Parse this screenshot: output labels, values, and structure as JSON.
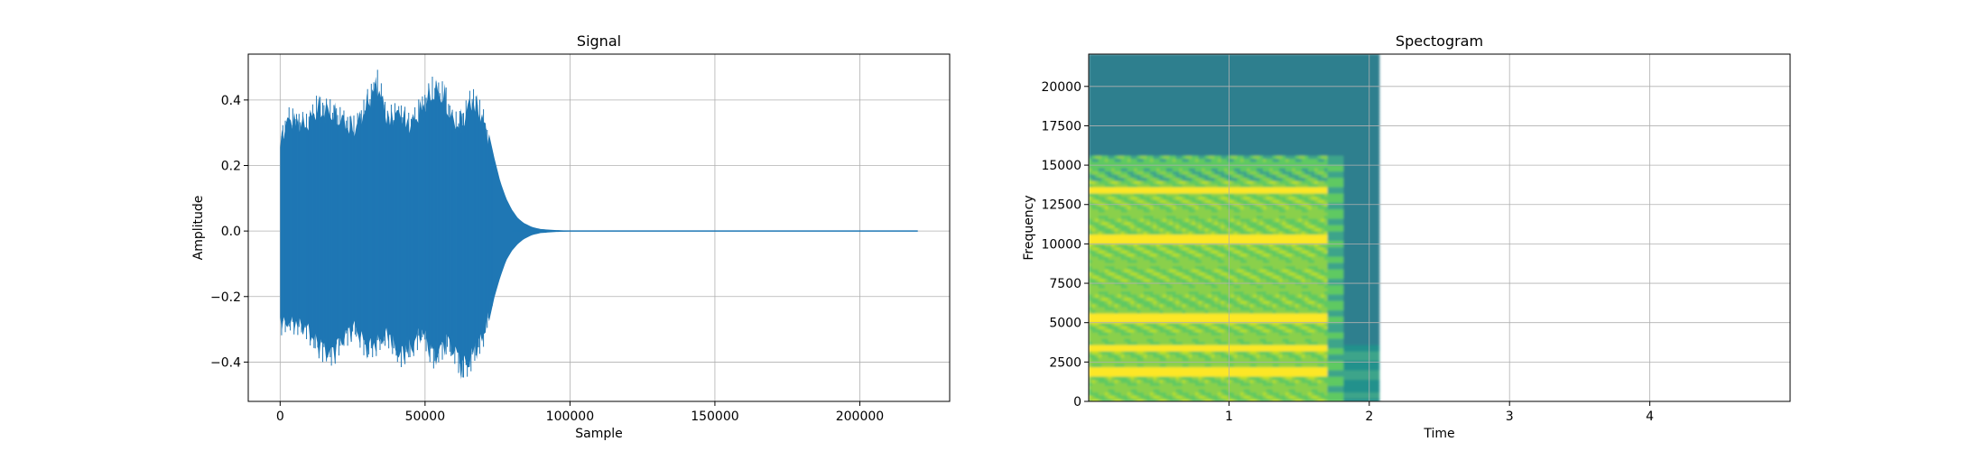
{
  "chart_data": [
    {
      "type": "line",
      "title": "Signal",
      "xlabel": "Sample",
      "ylabel": "Amplitude",
      "xlim": [
        -11000,
        231000
      ],
      "ylim": [
        -0.52,
        0.54
      ],
      "xticks": [
        0,
        50000,
        100000,
        150000,
        200000
      ],
      "xtick_labels": [
        "0",
        "50000",
        "100000",
        "150000",
        "200000"
      ],
      "yticks": [
        -0.4,
        -0.2,
        0.0,
        0.2,
        0.4
      ],
      "ytick_labels": [
        "−0.4",
        "−0.2",
        "0.0",
        "0.2",
        "0.4"
      ],
      "grid": true,
      "series": [
        {
          "color": "#1f77b4",
          "envelope": {
            "x": [
              0,
              3000,
              9000,
              13000,
              18000,
              22000,
              26000,
              30000,
              33500,
              37000,
              41000,
              45000,
              49000,
              53000,
              57000,
              60000,
              63000,
              66500,
              70000,
              72000,
              74000,
              76000,
              78000,
              80000,
              82000,
              84000,
              87000,
              90000,
              95000,
              100000,
              220000
            ],
            "upper": [
              0.31,
              0.38,
              0.36,
              0.42,
              0.4,
              0.37,
              0.35,
              0.43,
              0.5,
              0.38,
              0.4,
              0.36,
              0.42,
              0.48,
              0.45,
              0.36,
              0.38,
              0.45,
              0.38,
              0.3,
              0.22,
              0.15,
              0.1,
              0.065,
              0.04,
              0.025,
              0.012,
              0.006,
              0.003,
              0.001,
              0.0
            ],
            "lower": [
              -0.32,
              -0.31,
              -0.33,
              -0.39,
              -0.42,
              -0.36,
              -0.33,
              -0.4,
              -0.38,
              -0.35,
              -0.42,
              -0.4,
              -0.34,
              -0.43,
              -0.38,
              -0.4,
              -0.47,
              -0.42,
              -0.36,
              -0.28,
              -0.2,
              -0.14,
              -0.09,
              -0.06,
              -0.04,
              -0.025,
              -0.012,
              -0.006,
              -0.003,
              -0.001,
              0.0
            ]
          }
        }
      ]
    },
    {
      "type": "heatmap",
      "title": "Spectogram",
      "xlabel": "Time",
      "ylabel": "Frequency",
      "xlim": [
        0.0,
        5.0
      ],
      "ylim": [
        0,
        22050
      ],
      "xticks": [
        1,
        2,
        3,
        4
      ],
      "xtick_labels": [
        "1",
        "2",
        "3",
        "4"
      ],
      "yticks": [
        0,
        2500,
        5000,
        7500,
        10000,
        12500,
        15000,
        17500,
        20000
      ],
      "ytick_labels": [
        "0",
        "2500",
        "5000",
        "7500",
        "10000",
        "12500",
        "15000",
        "17500",
        "20000"
      ],
      "grid": true,
      "colormap": "viridis",
      "data_extent_x": [
        0.0,
        2.07
      ],
      "signal_end_time": 1.7,
      "high_energy_max_freq": 15500,
      "bright_bands_hz": [
        1800,
        3300,
        5200,
        10200,
        13300
      ],
      "colors": {
        "background": "#2f7f8e",
        "low": "#3ea48a",
        "mid": "#8ad04c",
        "high": "#d7e219",
        "peak": "#fde725"
      }
    }
  ]
}
